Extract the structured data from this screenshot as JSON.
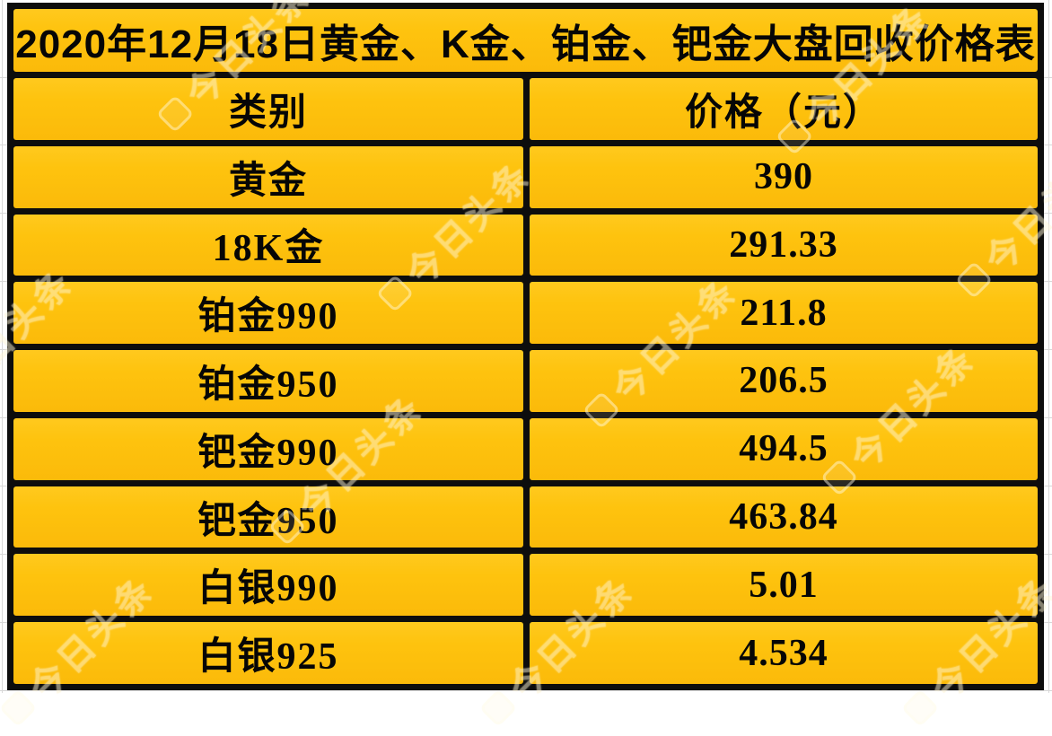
{
  "chart_data": {
    "type": "table",
    "title": "2020年12月18日黄金、K金、铂金、钯金大盘回收价格表",
    "columns": [
      "类别",
      "价格（元）"
    ],
    "rows": [
      [
        "黄金",
        "390"
      ],
      [
        "18K金",
        "291.33"
      ],
      [
        "铂金990",
        "211.8"
      ],
      [
        "铂金950",
        "206.5"
      ],
      [
        "钯金990",
        "494.5"
      ],
      [
        "钯金950",
        "463.84"
      ],
      [
        "白银990",
        "5.01"
      ],
      [
        "白银925",
        "4.534"
      ]
    ],
    "layout_hints": {
      "title_row_spans_columns": true,
      "grid_on": true,
      "cell_color": "#FEC30E",
      "border_color": "#0D0D0D",
      "text_color": "#060606"
    }
  },
  "watermark": {
    "text": "今日头条"
  },
  "colors": {
    "cell_yellow": "#FEC30E",
    "border_black": "#0D0D0D",
    "page_white": "#FFFFFF",
    "watermark_cream": "#FFF6D6"
  }
}
